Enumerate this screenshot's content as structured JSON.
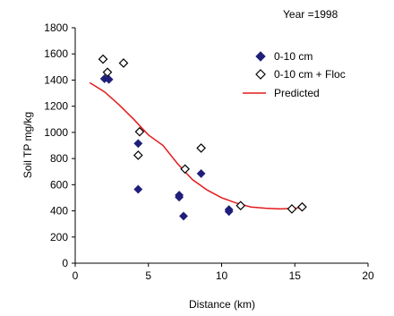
{
  "chart_data": {
    "type": "scatter",
    "title": "Year =1998",
    "xlabel": "Distance (km)",
    "ylabel": "Soil TP  mg/kg",
    "xlim": [
      0,
      20
    ],
    "ylim": [
      0,
      1800
    ],
    "xticks": [
      "0",
      "5",
      "10",
      "15",
      "20"
    ],
    "yticks": [
      "0",
      "200",
      "400",
      "600",
      "800",
      "1000",
      "1200",
      "1400",
      "1600",
      "1800"
    ],
    "grid": false,
    "legend_position": "top-right",
    "series": [
      {
        "name": "0-10 cm",
        "marker": "filled-diamond",
        "color": "#1f1f7a",
        "points": [
          [
            2.0,
            1410
          ],
          [
            2.3,
            1405
          ],
          [
            3.3,
            1530
          ],
          [
            4.3,
            915
          ],
          [
            4.3,
            565
          ],
          [
            7.1,
            520
          ],
          [
            7.1,
            505
          ],
          [
            7.4,
            360
          ],
          [
            8.6,
            685
          ],
          [
            10.5,
            410
          ],
          [
            10.5,
            395
          ],
          [
            11.3,
            440
          ],
          [
            14.8,
            415
          ],
          [
            15.5,
            430
          ]
        ]
      },
      {
        "name": "0-10 cm + Floc",
        "marker": "open-diamond",
        "color": "#000000",
        "points": [
          [
            1.9,
            1560
          ],
          [
            2.2,
            1460
          ],
          [
            3.3,
            1530
          ],
          [
            4.4,
            1005
          ],
          [
            4.3,
            825
          ],
          [
            7.5,
            720
          ],
          [
            8.6,
            880
          ],
          [
            11.3,
            440
          ],
          [
            14.8,
            415
          ],
          [
            15.5,
            430
          ]
        ]
      },
      {
        "name": "Predicted",
        "marker": "line",
        "color": "#e31a1c",
        "points": [
          [
            1.0,
            1380
          ],
          [
            2.0,
            1310
          ],
          [
            3.0,
            1210
          ],
          [
            4.0,
            1100
          ],
          [
            5.0,
            980
          ],
          [
            6.0,
            900
          ],
          [
            7.0,
            760
          ],
          [
            8.0,
            640
          ],
          [
            9.0,
            560
          ],
          [
            10.0,
            500
          ],
          [
            11.0,
            460
          ],
          [
            12.0,
            430
          ],
          [
            13.0,
            420
          ],
          [
            14.0,
            415
          ],
          [
            15.0,
            420
          ],
          [
            15.5,
            425
          ]
        ]
      }
    ]
  }
}
